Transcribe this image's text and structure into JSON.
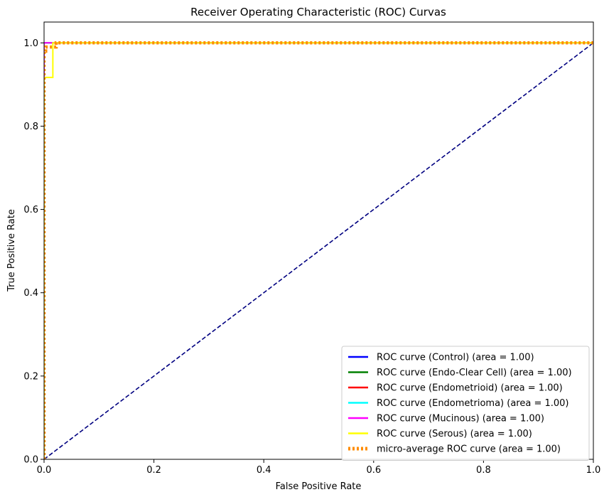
{
  "chart_data": {
    "type": "line",
    "title": "Receiver Operating Characteristic (ROC) Curvas",
    "xlabel": "False Positive Rate",
    "ylabel": "True Positive Rate",
    "xlim": [
      0.0,
      1.0
    ],
    "ylim": [
      0.0,
      1.05
    ],
    "xticks": [
      0.0,
      0.2,
      0.4,
      0.6,
      0.8,
      1.0
    ],
    "xtick_labels": [
      "0.0",
      "0.2",
      "0.4",
      "0.6",
      "0.8",
      "1.0"
    ],
    "yticks": [
      0.0,
      0.2,
      0.4,
      0.6,
      0.8,
      1.0
    ],
    "ytick_labels": [
      "0.0",
      "0.2",
      "0.4",
      "0.6",
      "0.8",
      "1.0"
    ],
    "grid": false,
    "legend_position": "lower-right",
    "series": [
      {
        "name": "ROC curve (Control) (area = 1.00)",
        "color": "#0000ff",
        "style": "solid",
        "x": [
          0.0,
          0.0,
          1.0
        ],
        "y": [
          0.0,
          1.0,
          1.0
        ]
      },
      {
        "name": "ROC curve (Endo-Clear Cell) (area = 1.00)",
        "color": "#008000",
        "style": "solid",
        "x": [
          0.0,
          0.0,
          1.0
        ],
        "y": [
          0.0,
          1.0,
          1.0
        ]
      },
      {
        "name": "ROC curve (Endometrioid) (area = 1.00)",
        "color": "#ff0000",
        "style": "solid",
        "x": [
          0.0,
          0.0,
          1.0
        ],
        "y": [
          0.0,
          1.0,
          1.0
        ]
      },
      {
        "name": "ROC curve (Endometrioma) (area = 1.00)",
        "color": "#00ffff",
        "style": "solid",
        "x": [
          0.0,
          0.0,
          1.0
        ],
        "y": [
          0.0,
          1.0,
          1.0
        ]
      },
      {
        "name": "ROC curve (Mucinous) (area = 1.00)",
        "color": "#ff00ff",
        "style": "solid",
        "x": [
          0.0,
          0.0,
          0.005,
          0.005,
          1.0
        ],
        "y": [
          0.0,
          1.0,
          1.0,
          1.0,
          1.0
        ]
      },
      {
        "name": "ROC curve (Serous) (area = 1.00)",
        "color": "#ffff00",
        "style": "solid",
        "x": [
          0.0,
          0.0,
          0.016,
          0.016,
          1.0
        ],
        "y": [
          0.0,
          0.917,
          0.917,
          1.0,
          1.0
        ]
      },
      {
        "name": "micro-average ROC curve (area = 1.00)",
        "color": "#ff8c00",
        "style": "dotted",
        "x": [
          0.0,
          0.0,
          0.003,
          0.003,
          0.022,
          0.022,
          1.0
        ],
        "y": [
          0.0,
          0.98,
          0.98,
          0.99,
          0.99,
          1.0,
          1.0
        ]
      }
    ],
    "reference_line": {
      "color": "#000080",
      "style": "dashed",
      "x": [
        0.0,
        1.0
      ],
      "y": [
        0.0,
        1.0
      ]
    }
  }
}
